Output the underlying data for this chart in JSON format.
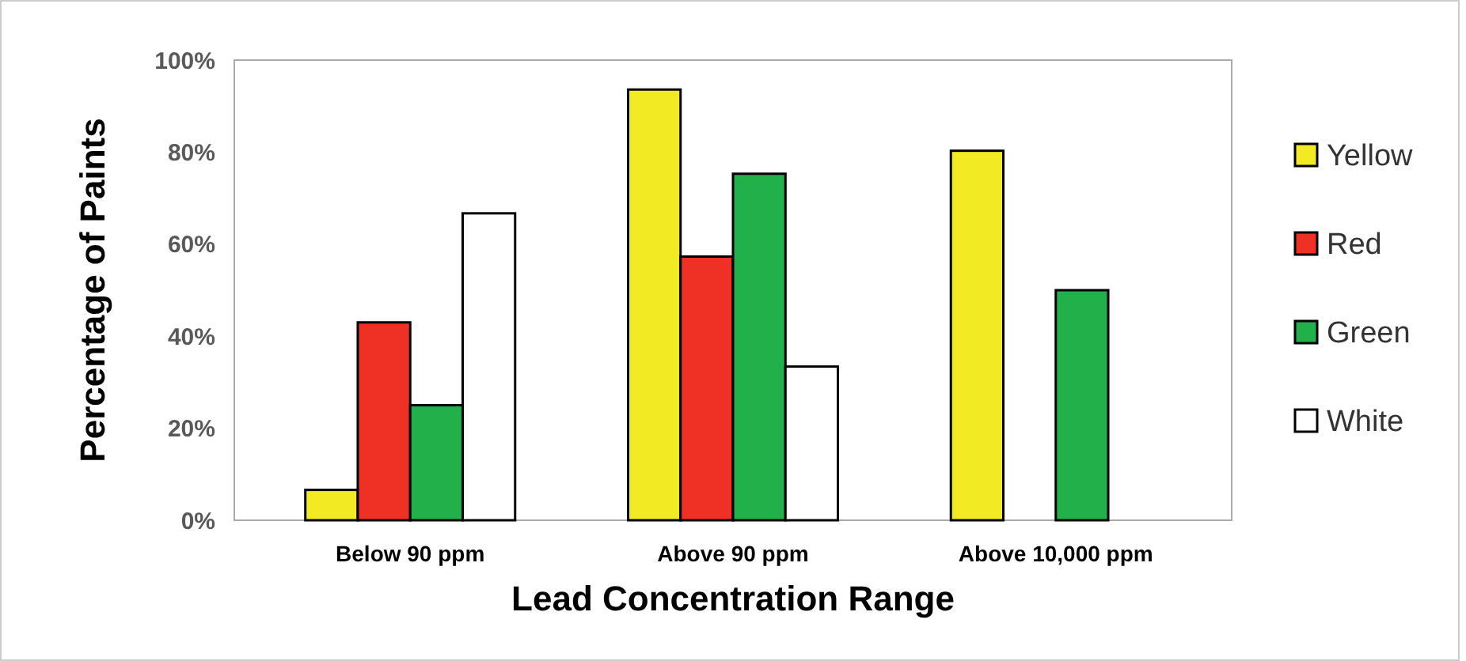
{
  "chart_data": {
    "type": "bar",
    "xlabel": "Lead Concentration Range",
    "ylabel": "Percentage of Paints",
    "categories": [
      "Below 90 ppm",
      "Above 90 ppm",
      "Above 10,000 ppm"
    ],
    "series": [
      {
        "name": "Yellow",
        "color": "#f2ea22",
        "values": [
          6.6,
          93.6,
          80.3
        ]
      },
      {
        "name": "Red",
        "color": "#ee3124",
        "values": [
          43,
          57.3,
          0
        ]
      },
      {
        "name": "Green",
        "color": "#22b04b",
        "values": [
          25,
          75.3,
          50
        ]
      },
      {
        "name": "White",
        "color": "#ffffff",
        "values": [
          66.7,
          33.4,
          0
        ]
      }
    ],
    "ylim": [
      0,
      100
    ],
    "yticks": [
      {
        "value": 0,
        "label": "0%"
      },
      {
        "value": 20,
        "label": "20%"
      },
      {
        "value": 40,
        "label": "40%"
      },
      {
        "value": 60,
        "label": "60%"
      },
      {
        "value": 80,
        "label": "80%"
      },
      {
        "value": 100,
        "label": "100%"
      }
    ],
    "grid": false,
    "legend": "right"
  }
}
